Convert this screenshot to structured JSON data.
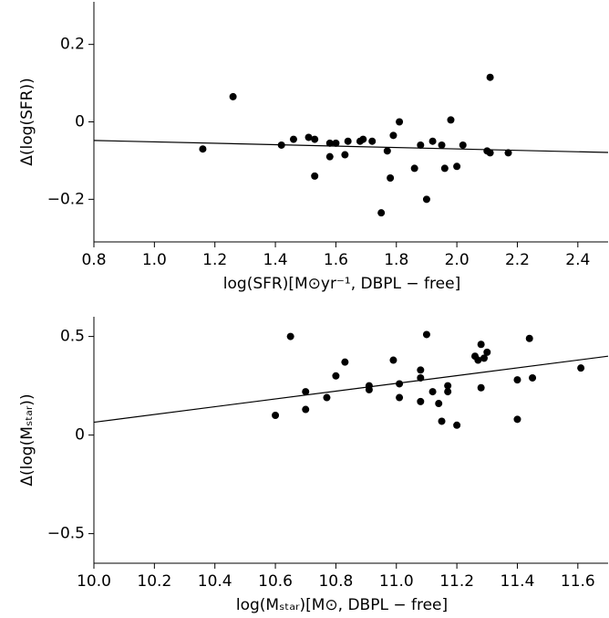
{
  "chart_data": [
    {
      "type": "scatter",
      "color": "#000000",
      "x_label": "log(SFR)[M⊙yr⁻¹, DBPL − free]",
      "y_label": "Δ(log(SFR))",
      "x": [
        1.16,
        1.26,
        1.42,
        1.46,
        1.51,
        1.53,
        1.53,
        1.58,
        1.6,
        1.58,
        1.63,
        1.64,
        1.68,
        1.69,
        1.72,
        1.77,
        1.78,
        1.79,
        1.81,
        1.75,
        1.86,
        1.88,
        1.9,
        1.92,
        1.95,
        1.96,
        1.98,
        2.0,
        2.02,
        2.1,
        2.11,
        2.11,
        2.17
      ],
      "values": [
        -0.07,
        0.065,
        -0.06,
        -0.045,
        -0.04,
        -0.045,
        -0.14,
        -0.055,
        -0.055,
        -0.09,
        -0.085,
        -0.05,
        -0.05,
        -0.045,
        -0.05,
        -0.075,
        -0.145,
        -0.035,
        0.0,
        -0.235,
        -0.12,
        -0.06,
        -0.2,
        -0.05,
        -0.06,
        -0.12,
        0.005,
        -0.115,
        -0.06,
        -0.075,
        -0.08,
        0.115,
        -0.08
      ],
      "fit": {
        "x": [
          0.8,
          2.5
        ],
        "y": [
          -0.048,
          -0.079
        ]
      },
      "xlim": [
        0.8,
        2.5
      ],
      "ylim": [
        -0.31,
        0.31
      ],
      "xticks": [
        0.8,
        {
          "value": 1,
          "label": "1.0"
        },
        1.2,
        1.4,
        1.6,
        1.8,
        {
          "value": 2,
          "label": "2.0"
        },
        2.2,
        2.4
      ],
      "yticks": [
        0.2,
        0,
        {
          "value": -0.2,
          "label": "−0.2"
        }
      ]
    },
    {
      "type": "scatter",
      "color": "#000000",
      "x_label": "log(Mₛₜₐᵣ)[M⊙, DBPL − free]",
      "y_label": "Δ(log(Mₛₜₐᵣ))",
      "x": [
        10.6,
        10.65,
        10.7,
        10.7,
        10.77,
        10.8,
        10.83,
        10.91,
        10.91,
        10.99,
        11.01,
        11.01,
        11.08,
        11.08,
        11.08,
        11.1,
        11.12,
        11.14,
        11.15,
        11.17,
        11.17,
        11.2,
        11.26,
        11.27,
        11.28,
        11.28,
        11.29,
        11.3,
        11.4,
        11.4,
        11.44,
        11.45,
        11.61
      ],
      "values": [
        0.1,
        0.5,
        0.22,
        0.13,
        0.19,
        0.3,
        0.37,
        0.25,
        0.23,
        0.38,
        0.26,
        0.19,
        0.17,
        0.29,
        0.33,
        0.51,
        0.22,
        0.16,
        0.07,
        0.25,
        0.22,
        0.05,
        0.4,
        0.38,
        0.46,
        0.24,
        0.39,
        0.42,
        0.28,
        0.08,
        0.49,
        0.29,
        0.34
      ],
      "fit": {
        "x": [
          10.0,
          11.7
        ],
        "y": [
          0.065,
          0.4
        ]
      },
      "xlim": [
        10.0,
        11.7
      ],
      "ylim": [
        -0.65,
        0.6
      ],
      "xticks": [
        {
          "value": 10,
          "label": "10.0"
        },
        10.2,
        10.4,
        10.6,
        10.8,
        {
          "value": 11,
          "label": "11.0"
        },
        11.2,
        11.4,
        11.6
      ],
      "yticks": [
        0.5,
        0,
        {
          "value": -0.5,
          "label": "−0.5"
        }
      ]
    }
  ]
}
